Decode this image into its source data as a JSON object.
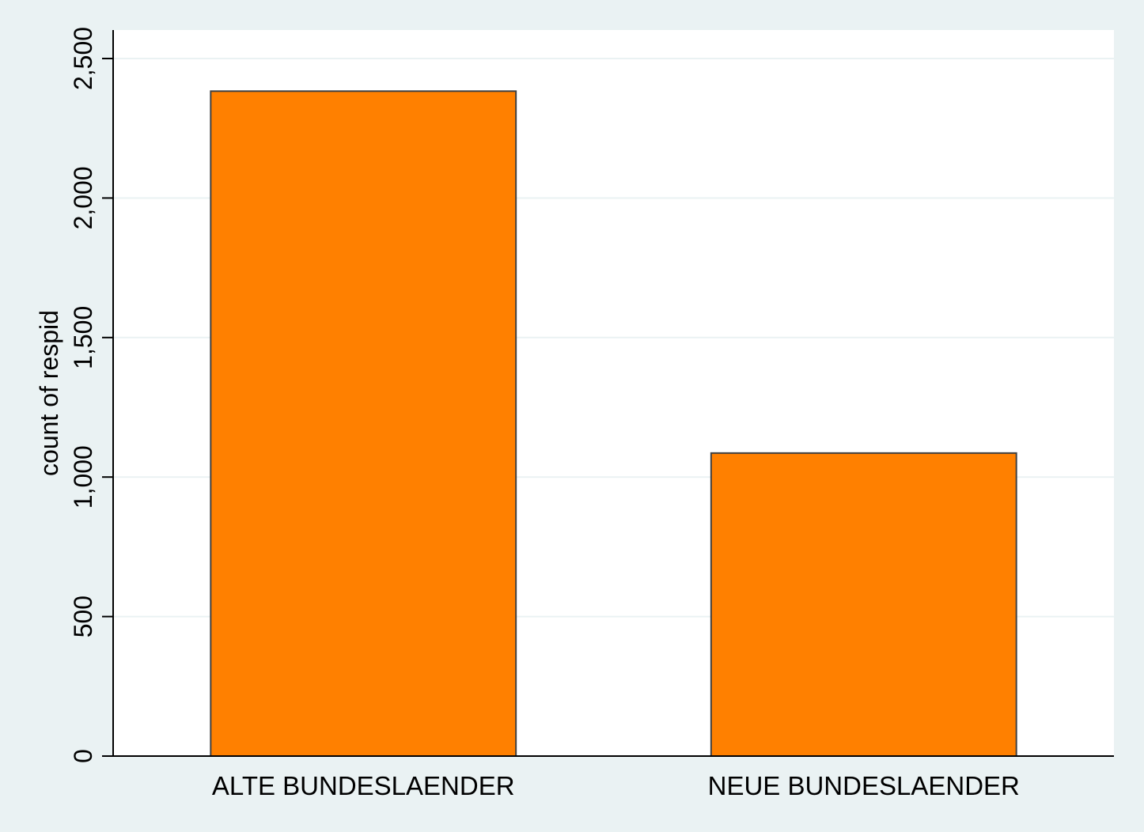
{
  "chart_data": {
    "type": "bar",
    "title": "",
    "xlabel": "",
    "ylabel": "count of respid",
    "categories": [
      "ALTE BUNDESLAENDER",
      "NEUE BUNDESLAENDER"
    ],
    "values": [
      2383,
      1086
    ],
    "ylim": [
      0,
      2600
    ],
    "yticks": [
      0,
      500,
      1000,
      1500,
      2000,
      2500
    ],
    "ytick_labels": [
      "0",
      "500",
      "1,000",
      "1,500",
      "2,000",
      "2,500"
    ],
    "grid": true,
    "legend": "none",
    "colors": {
      "bar_fill": "#ff8000",
      "bar_stroke": "#404040",
      "plot_bg": "#ffffff",
      "outer_bg": "#eaf2f3",
      "grid": "#eaf2f3"
    }
  }
}
